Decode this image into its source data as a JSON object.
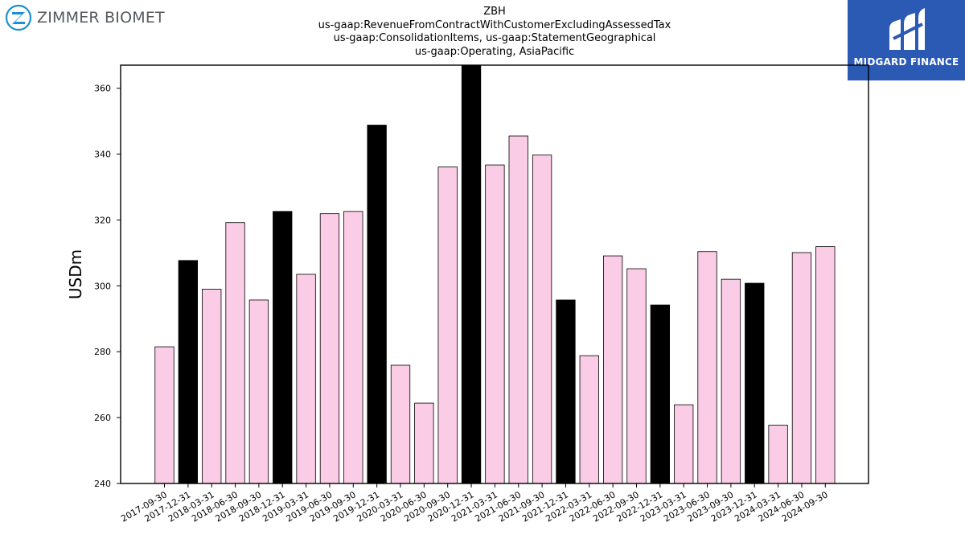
{
  "brand_left": {
    "name": "ZIMMER BIOMET",
    "icon": "zimmer-z-logo",
    "color": "#1e8fd0"
  },
  "brand_right": {
    "name": "MIDGARD FINANCE",
    "icon": "midgard-logo",
    "background": "#2a5ab4"
  },
  "colors": {
    "normal": "#fbcce5",
    "year_end": "#000000"
  },
  "chart_data": {
    "type": "bar",
    "title_lines": [
      "ZBH",
      "us-gaap:RevenueFromContractWithCustomerExcludingAssessedTax",
      "us-gaap:ConsolidationItems, us-gaap:StatementGeographical",
      "us-gaap:Operating, AsiaPacific"
    ],
    "xlabel": "",
    "ylabel": "USDm",
    "ylim": [
      240,
      367
    ],
    "yticks": [
      240,
      260,
      280,
      300,
      320,
      340,
      360
    ],
    "categories": [
      "2017-09-30",
      "2017-12-31",
      "2018-03-31",
      "2018-06-30",
      "2018-09-30",
      "2018-12-31",
      "2019-03-31",
      "2019-06-30",
      "2019-09-30",
      "2019-12-31",
      "2020-03-31",
      "2020-06-30",
      "2020-09-30",
      "2020-12-31",
      "2021-03-31",
      "2021-06-30",
      "2021-09-30",
      "2021-12-31",
      "2022-03-31",
      "2022-06-30",
      "2022-09-30",
      "2022-12-31",
      "2023-03-31",
      "2023-06-30",
      "2023-09-30",
      "2023-12-31",
      "2024-03-31",
      "2024-06-30",
      "2024-09-30"
    ],
    "values": [
      281.5,
      307.7,
      299.0,
      319.2,
      295.7,
      322.6,
      303.5,
      321.9,
      322.6,
      348.8,
      275.9,
      264.4,
      336.1,
      367.5,
      336.7,
      345.5,
      339.7,
      295.7,
      278.8,
      309.1,
      305.2,
      294.2,
      263.9,
      310.4,
      302.0,
      300.8,
      257.7,
      310.1,
      311.9
    ],
    "highlight": [
      false,
      true,
      false,
      false,
      false,
      true,
      false,
      false,
      false,
      true,
      false,
      false,
      false,
      true,
      false,
      false,
      false,
      true,
      false,
      false,
      false,
      true,
      false,
      false,
      false,
      true,
      false,
      false,
      false
    ],
    "grid": false,
    "legend": "none"
  }
}
